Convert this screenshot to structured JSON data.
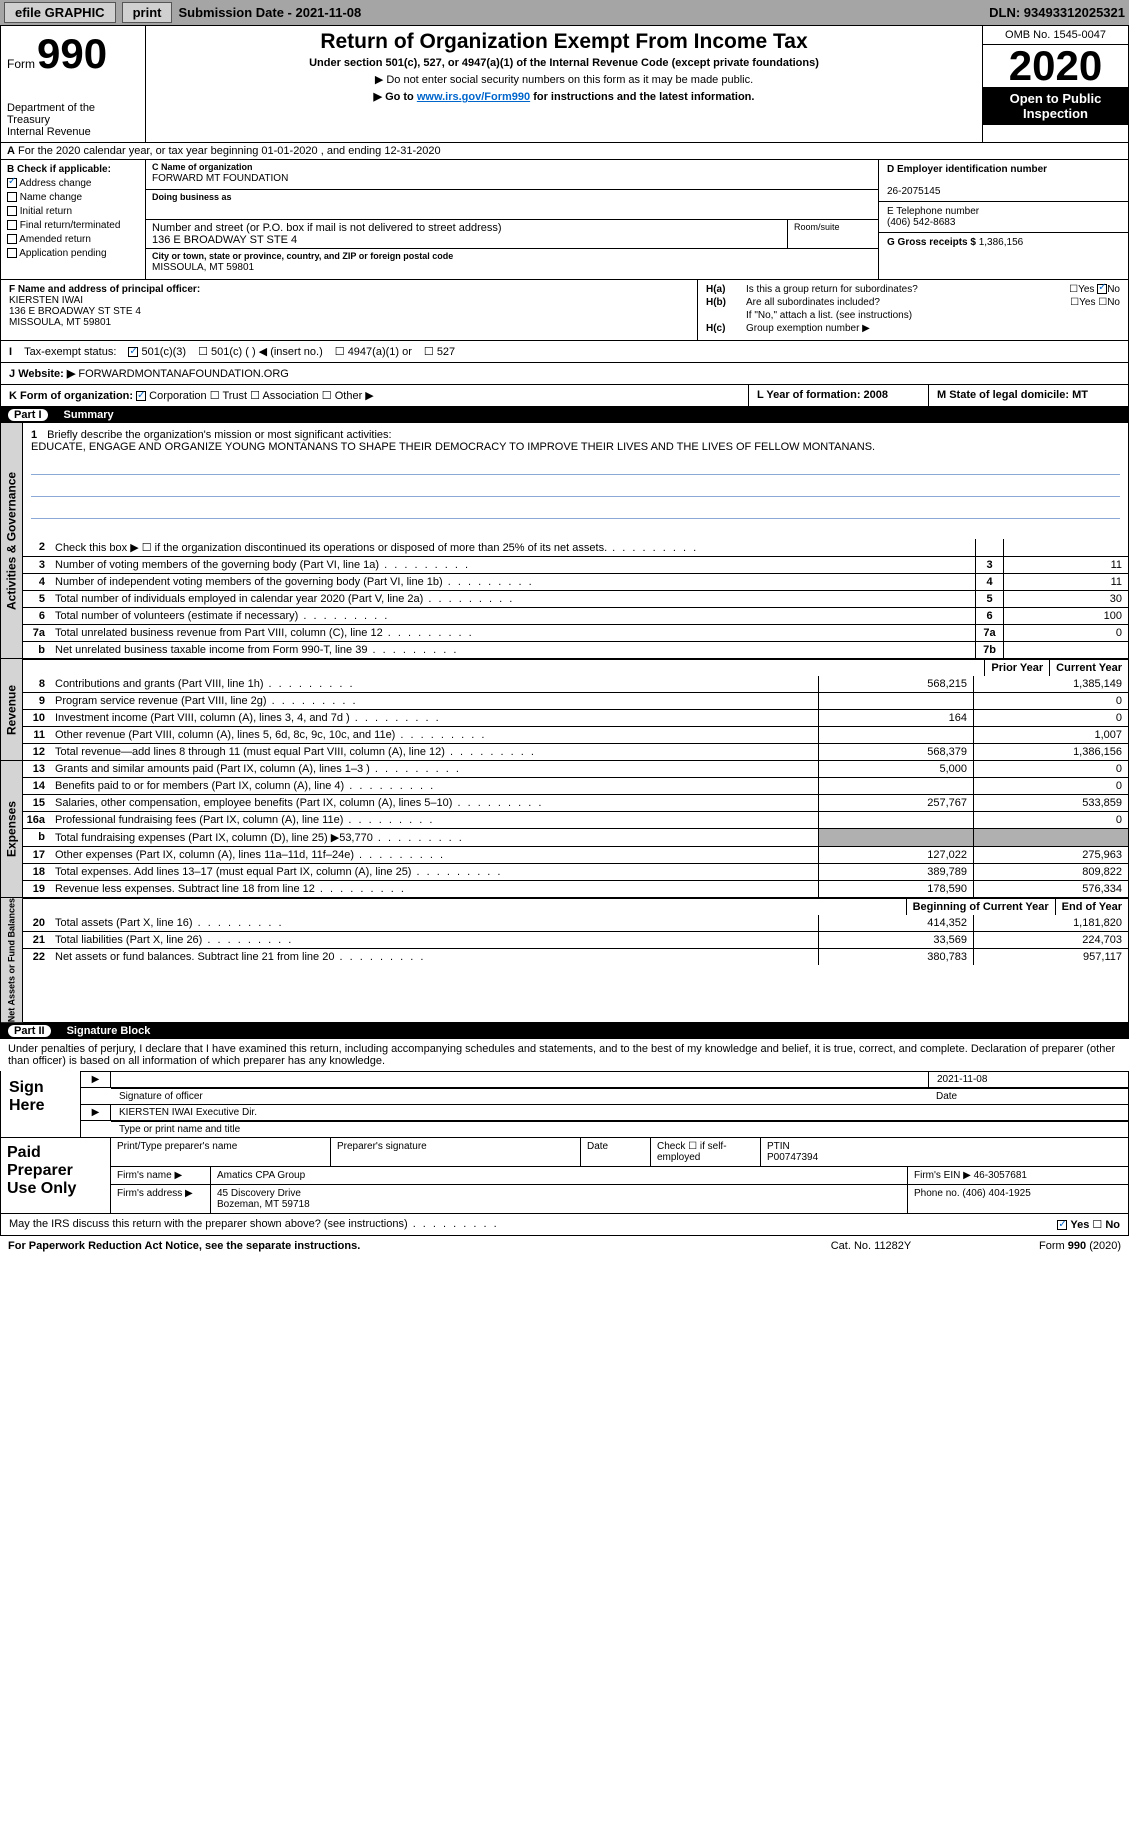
{
  "topbar": {
    "efile": "efile GRAPHIC",
    "print": "print",
    "submission": "Submission Date - 2021-11-08",
    "dln": "DLN: 93493312025321"
  },
  "header": {
    "form": "Form",
    "num": "990",
    "dept": "Department of the Treasury\nInternal Revenue",
    "title": "Return of Organization Exempt From Income Tax",
    "subtitle": "Under section 501(c), 527, or 4947(a)(1) of the Internal Revenue Code (except private foundations)",
    "note1": "▶ Do not enter social security numbers on this form as it may be made public.",
    "note2_pre": "▶ Go to ",
    "note2_link": "www.irs.gov/Form990",
    "note2_post": " for instructions and the latest information.",
    "omb": "OMB No. 1545-0047",
    "year": "2020",
    "open": "Open to Public Inspection"
  },
  "row_a": "For the 2020 calendar year, or tax year beginning 01-01-2020   , and ending 12-31-2020",
  "col_b": {
    "label": "B Check if applicable:",
    "items": [
      "Address change",
      "Name change",
      "Initial return",
      "Final return/terminated",
      "Amended return",
      "Application pending"
    ],
    "checked": [
      true,
      false,
      false,
      false,
      false,
      false
    ]
  },
  "col_c": {
    "name_lbl": "C Name of organization",
    "name": "FORWARD MT FOUNDATION",
    "dba_lbl": "Doing business as",
    "addr_lbl": "Number and street (or P.O. box if mail is not delivered to street address)",
    "addr": "136 E BROADWAY ST STE 4",
    "room_lbl": "Room/suite",
    "city_lbl": "City or town, state or province, country, and ZIP or foreign postal code",
    "city": "MISSOULA, MT  59801"
  },
  "col_d": {
    "ein_lbl": "D Employer identification number",
    "ein": "26-2075145",
    "tel_lbl": "E Telephone number",
    "tel": "(406) 542-8683",
    "gross_lbl": "G Gross receipts $",
    "gross": "1,386,156"
  },
  "row_f": {
    "lbl": "F  Name and address of principal officer:",
    "name": "KIERSTEN IWAI",
    "addr1": "136 E BROADWAY ST STE 4",
    "addr2": "MISSOULA, MT  59801"
  },
  "row_h": {
    "a_lbl": "Is this a group return for subordinates?",
    "b_lbl": "Are all subordinates included?",
    "b_note": "If \"No,\" attach a list. (see instructions)",
    "c_lbl": "Group exemption number ▶"
  },
  "row_i": {
    "lbl": "Tax-exempt status:",
    "o1": "501(c)(3)",
    "o2": "501(c) (  ) ◀ (insert no.)",
    "o3": "4947(a)(1) or",
    "o4": "527"
  },
  "row_j": {
    "lbl": "Website: ▶",
    "val": "FORWARDMONTANAFOUNDATION.ORG"
  },
  "row_k": {
    "k": "K Form of organization:",
    "o1": "Corporation",
    "o2": "Trust",
    "o3": "Association",
    "o4": "Other ▶",
    "l": "L Year of formation: 2008",
    "m": "M State of legal domicile: MT"
  },
  "part1": {
    "num": "Part I",
    "title": "Summary"
  },
  "brief": {
    "num": "1",
    "lbl": "Briefly describe the organization's mission or most significant activities:",
    "txt": "EDUCATE, ENGAGE AND ORGANIZE YOUNG MONTANANS TO SHAPE THEIR DEMOCRACY TO IMPROVE THEIR LIVES AND THE LIVES OF FELLOW MONTANANS."
  },
  "lines_gov": [
    {
      "n": "2",
      "t": "Check this box ▶ ☐ if the organization discontinued its operations or disposed of more than 25% of its net assets.",
      "b": "",
      "v": ""
    },
    {
      "n": "3",
      "t": "Number of voting members of the governing body (Part VI, line 1a)",
      "b": "3",
      "v": "11"
    },
    {
      "n": "4",
      "t": "Number of independent voting members of the governing body (Part VI, line 1b)",
      "b": "4",
      "v": "11"
    },
    {
      "n": "5",
      "t": "Total number of individuals employed in calendar year 2020 (Part V, line 2a)",
      "b": "5",
      "v": "30"
    },
    {
      "n": "6",
      "t": "Total number of volunteers (estimate if necessary)",
      "b": "6",
      "v": "100"
    },
    {
      "n": "7a",
      "t": "Total unrelated business revenue from Part VIII, column (C), line 12",
      "b": "7a",
      "v": "0"
    },
    {
      "n": "b",
      "t": "Net unrelated business taxable income from Form 990-T, line 39",
      "b": "7b",
      "v": ""
    }
  ],
  "col_hdrs": {
    "py": "Prior Year",
    "cy": "Current Year"
  },
  "lines_rev": [
    {
      "n": "8",
      "t": "Contributions and grants (Part VIII, line 1h)",
      "py": "568,215",
      "cy": "1,385,149"
    },
    {
      "n": "9",
      "t": "Program service revenue (Part VIII, line 2g)",
      "py": "",
      "cy": "0"
    },
    {
      "n": "10",
      "t": "Investment income (Part VIII, column (A), lines 3, 4, and 7d )",
      "py": "164",
      "cy": "0"
    },
    {
      "n": "11",
      "t": "Other revenue (Part VIII, column (A), lines 5, 6d, 8c, 9c, 10c, and 11e)",
      "py": "",
      "cy": "1,007"
    },
    {
      "n": "12",
      "t": "Total revenue—add lines 8 through 11 (must equal Part VIII, column (A), line 12)",
      "py": "568,379",
      "cy": "1,386,156"
    }
  ],
  "lines_exp": [
    {
      "n": "13",
      "t": "Grants and similar amounts paid (Part IX, column (A), lines 1–3 )",
      "py": "5,000",
      "cy": "0"
    },
    {
      "n": "14",
      "t": "Benefits paid to or for members (Part IX, column (A), line 4)",
      "py": "",
      "cy": "0"
    },
    {
      "n": "15",
      "t": "Salaries, other compensation, employee benefits (Part IX, column (A), lines 5–10)",
      "py": "257,767",
      "cy": "533,859"
    },
    {
      "n": "16a",
      "t": "Professional fundraising fees (Part IX, column (A), line 11e)",
      "py": "",
      "cy": "0"
    },
    {
      "n": "b",
      "t": "Total fundraising expenses (Part IX, column (D), line 25) ▶53,770",
      "py": "GRAY",
      "cy": "GRAY"
    },
    {
      "n": "17",
      "t": "Other expenses (Part IX, column (A), lines 11a–11d, 11f–24e)",
      "py": "127,022",
      "cy": "275,963"
    },
    {
      "n": "18",
      "t": "Total expenses. Add lines 13–17 (must equal Part IX, column (A), line 25)",
      "py": "389,789",
      "cy": "809,822"
    },
    {
      "n": "19",
      "t": "Revenue less expenses. Subtract line 18 from line 12",
      "py": "178,590",
      "cy": "576,334"
    }
  ],
  "col_hdrs2": {
    "py": "Beginning of Current Year",
    "cy": "End of Year"
  },
  "lines_net": [
    {
      "n": "20",
      "t": "Total assets (Part X, line 16)",
      "py": "414,352",
      "cy": "1,181,820"
    },
    {
      "n": "21",
      "t": "Total liabilities (Part X, line 26)",
      "py": "33,569",
      "cy": "224,703"
    },
    {
      "n": "22",
      "t": "Net assets or fund balances. Subtract line 21 from line 20",
      "py": "380,783",
      "cy": "957,117"
    }
  ],
  "vtabs": {
    "gov": "Activities & Governance",
    "rev": "Revenue",
    "exp": "Expenses",
    "net": "Net Assets or Fund Balances"
  },
  "part2": {
    "num": "Part II",
    "title": "Signature Block"
  },
  "sig": {
    "decl": "Under penalties of perjury, I declare that I have examined this return, including accompanying schedules and statements, and to the best of my knowledge and belief, it is true, correct, and complete. Declaration of preparer (other than officer) is based on all information of which preparer has any knowledge.",
    "sign_here": "Sign Here",
    "date": "2021-11-08",
    "sig_lbl": "Signature of officer",
    "date_lbl": "Date",
    "name": "KIERSTEN IWAI Executive Dir.",
    "name_lbl": "Type or print name and title"
  },
  "prep": {
    "lbl": "Paid Preparer Use Only",
    "h1": "Print/Type preparer's name",
    "h2": "Preparer's signature",
    "h3": "Date",
    "h4": "Check ☐ if self-employed",
    "h5_lbl": "PTIN",
    "h5": "P00747394",
    "firm_lbl": "Firm's name   ▶",
    "firm": "Amatics CPA Group",
    "ein_lbl": "Firm's EIN ▶",
    "ein": "46-3057681",
    "addr_lbl": "Firm's address ▶",
    "addr1": "45 Discovery Drive",
    "addr2": "Bozeman, MT  59718",
    "phone_lbl": "Phone no.",
    "phone": "(406) 404-1925"
  },
  "discuss": "May the IRS discuss this return with the preparer shown above? (see instructions)",
  "foot": {
    "l": "For Paperwork Reduction Act Notice, see the separate instructions.",
    "c": "Cat. No. 11282Y",
    "r": "Form 990 (2020)"
  },
  "yes": "Yes",
  "no": "No"
}
